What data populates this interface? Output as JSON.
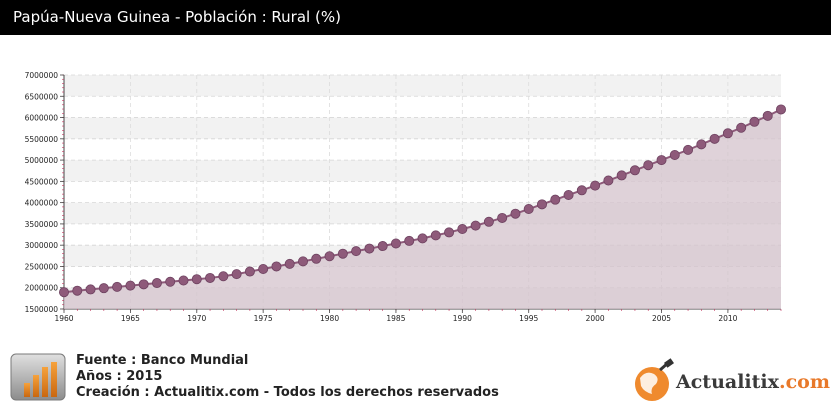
{
  "header": {
    "title": "Papúa-Nueva Guinea - Población : Rural (%)"
  },
  "chart_data": {
    "type": "area",
    "title": "Papúa-Nueva Guinea - Población : Rural (%)",
    "x": [
      1960,
      1961,
      1962,
      1963,
      1964,
      1965,
      1966,
      1967,
      1968,
      1969,
      1970,
      1971,
      1972,
      1973,
      1974,
      1975,
      1976,
      1977,
      1978,
      1979,
      1980,
      1981,
      1982,
      1983,
      1984,
      1985,
      1986,
      1987,
      1988,
      1989,
      1990,
      1991,
      1992,
      1993,
      1994,
      1995,
      1996,
      1997,
      1998,
      1999,
      2000,
      2001,
      2002,
      2003,
      2004,
      2005,
      2006,
      2007,
      2008,
      2009,
      2010,
      2011,
      2012,
      2013,
      2014
    ],
    "values": [
      1895000,
      1930000,
      1960000,
      1990000,
      2020000,
      2050000,
      2080000,
      2110000,
      2140000,
      2170000,
      2200000,
      2230000,
      2270000,
      2320000,
      2380000,
      2440000,
      2500000,
      2560000,
      2620000,
      2680000,
      2740000,
      2800000,
      2860000,
      2920000,
      2980000,
      3040000,
      3100000,
      3160000,
      3230000,
      3300000,
      3380000,
      3460000,
      3550000,
      3640000,
      3740000,
      3850000,
      3960000,
      4070000,
      4180000,
      4290000,
      4400000,
      4520000,
      4640000,
      4760000,
      4880000,
      5000000,
      5120000,
      5240000,
      5370000,
      5500000,
      5630000,
      5760000,
      5900000,
      6040000,
      6190000
    ],
    "xticks": [
      1960,
      1965,
      1970,
      1975,
      1980,
      1985,
      1990,
      1995,
      2000,
      2005,
      2010
    ],
    "xtick_labels": [
      "1960",
      "1965",
      "1970",
      "1975",
      "1980",
      "1985",
      "1990",
      "1995",
      "2000",
      "2005",
      "2010"
    ],
    "ylim": [
      1500000,
      7000000
    ],
    "yticks": [
      1500000,
      2000000,
      2500000,
      3000000,
      3500000,
      4000000,
      4500000,
      5000000,
      5500000,
      6000000,
      6500000,
      7000000
    ],
    "ytick_labels": [
      "1500000",
      "2000000",
      "2500000",
      "3000000",
      "3500000",
      "4000000",
      "4500000",
      "5000000",
      "5500000",
      "6000000",
      "6500000",
      "7000000"
    ],
    "xlabel": "",
    "ylabel": "",
    "grid": true,
    "colors": {
      "line": "#8e5a7a",
      "marker": "#8e5a7a",
      "fill": "#d4c3cc"
    }
  },
  "footer": {
    "source": "Fuente : Banco Mundial",
    "years": "Años : 2015",
    "credit": "Creación : Actualitix.com - Todos los derechos reservados",
    "icon": "bar-chart-icon"
  },
  "logo": {
    "name": "Actualitix",
    "suffix": ".com",
    "icon": "globe-icon"
  }
}
